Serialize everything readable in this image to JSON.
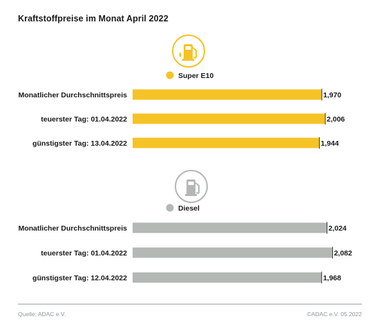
{
  "title": "Kraftstoffpreise im Monat April 2022",
  "footer": {
    "source": "Quelle: ADAC e.V.",
    "copyright": "©ADAC e.V. 05.2022"
  },
  "colors": {
    "super": "#f5c326",
    "diesel": "#b4b8b5",
    "legend_dot_super": "#f5c326",
    "legend_dot_diesel": "#b4b8b5"
  },
  "chart_data": [
    {
      "type": "bar",
      "orientation": "horizontal",
      "legend": "Super E10",
      "icon": "fuel-pump-icon",
      "categories": [
        "Monatlicher Durchschnittspreis",
        "teuerster Tag: 01.04.2022",
        "günstigster Tag: 13.04.2022"
      ],
      "values": [
        1.97,
        2.006,
        1.944
      ],
      "labels": [
        "1,970",
        "2,006",
        "1,944"
      ]
    },
    {
      "type": "bar",
      "orientation": "horizontal",
      "legend": "Diesel",
      "icon": "fuel-pump-icon",
      "categories": [
        "Monatlicher Durchschnittspreis",
        "teuerster Tag: 01.04.2022",
        "günstigster Tag: 12.04.2022"
      ],
      "values": [
        2.024,
        2.082,
        1.968
      ],
      "labels": [
        "2,024",
        "2,082",
        "1,968"
      ]
    }
  ]
}
